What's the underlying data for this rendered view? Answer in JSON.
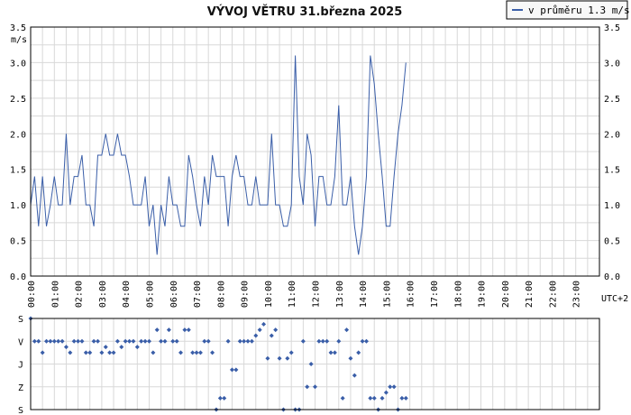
{
  "header": {
    "title": "VÝVOJ VĚTRU  31.března 2025",
    "legend_label": "v průměru 1.3 m/s"
  },
  "colors": {
    "series": "#3a5ea8",
    "grid": "#d8d8d8",
    "frame": "#000000"
  },
  "chart_data": [
    {
      "type": "line",
      "title": "VÝVOJ VĚTRU  31.března 2025",
      "ylabel": "m/s",
      "timezone_label": "UTC+2",
      "ylim": [
        0,
        3.5
      ],
      "yticks": [
        "0.0",
        "0.5",
        "1.0",
        "1.5",
        "2.0",
        "2.5",
        "3.0",
        "3.5"
      ],
      "x_ticks": [
        "00:00",
        "01:00",
        "02:00",
        "03:00",
        "04:00",
        "05:00",
        "06:00",
        "07:00",
        "08:00",
        "09:00",
        "10:00",
        "11:00",
        "12:00",
        "13:00",
        "14:00",
        "15:00",
        "16:00",
        "17:00",
        "18:00",
        "19:00",
        "20:00",
        "21:00",
        "22:00",
        "23:00"
      ],
      "interval_minutes": 10,
      "grid": true,
      "legend_position": "top-right",
      "series": [
        {
          "name": "v průměru 1.3 m/s",
          "values": [
            1.0,
            1.4,
            0.7,
            1.4,
            0.7,
            1.0,
            1.4,
            1.0,
            1.0,
            2.0,
            1.0,
            1.4,
            1.4,
            1.7,
            1.0,
            1.0,
            0.7,
            1.7,
            1.7,
            2.0,
            1.7,
            1.7,
            2.0,
            1.7,
            1.7,
            1.4,
            1.0,
            1.0,
            1.0,
            1.4,
            0.7,
            1.0,
            0.3,
            1.0,
            0.7,
            1.4,
            1.0,
            1.0,
            0.7,
            0.7,
            1.7,
            1.4,
            1.0,
            0.7,
            1.4,
            1.0,
            1.7,
            1.4,
            1.4,
            1.4,
            0.7,
            1.4,
            1.7,
            1.4,
            1.4,
            1.0,
            1.0,
            1.4,
            1.0,
            1.0,
            1.0,
            2.0,
            1.0,
            1.0,
            0.7,
            0.7,
            1.0,
            3.1,
            1.4,
            1.0,
            2.0,
            1.7,
            0.7,
            1.4,
            1.4,
            1.0,
            1.0,
            1.4,
            2.4,
            1.0,
            1.0,
            1.4,
            0.7,
            0.3,
            0.7,
            1.4,
            3.1,
            2.7,
            2.0,
            1.4,
            0.7,
            0.7,
            1.4,
            2.0,
            2.4,
            3.0
          ]
        }
      ]
    },
    {
      "type": "scatter",
      "title": "",
      "ylabel": "",
      "categories_y": [
        "S",
        "V",
        "J",
        "Z",
        "S"
      ],
      "interval_minutes": 10,
      "series": [
        {
          "name": "",
          "values": [
            4,
            3,
            3,
            2.5,
            3,
            3,
            3,
            3,
            3,
            2.75,
            2.5,
            3,
            3,
            3,
            2.5,
            2.5,
            3,
            3,
            2.5,
            2.75,
            2.5,
            2.5,
            3,
            2.75,
            3,
            3,
            3,
            2.75,
            3,
            3,
            3,
            2.5,
            3.5,
            3,
            3,
            3.5,
            3,
            3,
            2.5,
            3.5,
            3.5,
            2.5,
            2.5,
            2.5,
            3,
            3,
            2.5,
            0,
            0.5,
            0.5,
            3,
            1.75,
            1.75,
            3,
            3,
            3,
            3,
            3.25,
            3.5,
            3.75,
            2.25,
            3.25,
            3.5,
            2.25,
            0,
            2.25,
            2.5,
            0,
            0,
            3,
            1,
            2,
            1,
            3,
            3,
            3,
            2.5,
            2.5,
            3,
            0.5,
            3.5,
            2.25,
            1.5,
            2.5,
            3,
            3,
            0.5,
            0.5,
            0,
            0.5,
            0.75,
            1,
            1,
            0,
            0.5,
            0.5
          ]
        }
      ]
    }
  ]
}
